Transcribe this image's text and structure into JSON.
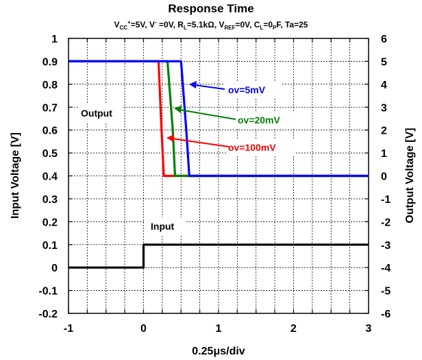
{
  "chart_data": {
    "type": "line",
    "title": "Response Time",
    "subtitle": {
      "vcc": "V",
      "vcc_sub": "CC",
      "vcc_sup": "+",
      "vcc_rest": "=5V, V",
      "vminus_sup": "-",
      "vminus_rest": " =0V, R",
      "rl_sub": "L",
      "rl_rest": "=5.1kΩ, V",
      "vref_sub": "REF",
      "vref_rest": "=0V, C",
      "cl_sub": "L",
      "cl_rest": "=0",
      "p_sub": "P",
      "p_rest": "F, Ta=25"
    },
    "xlabel": "0.25μs/div",
    "ylabel_left": "Input Voltage [V]",
    "ylabel_right": "Output Voltage [V]",
    "xlim": [
      -1,
      3
    ],
    "ylim_left": [
      -0.2,
      1.0
    ],
    "ylim_right": [
      -6,
      6
    ],
    "x_ticks": [
      "-1",
      "0",
      "1",
      "2",
      "3"
    ],
    "y_left_ticks": [
      "1",
      "0.9",
      "0.8",
      "0.7",
      "0.6",
      "0.5",
      "0.4",
      "0.3",
      "0.2",
      "0.1",
      "0",
      "-0.1",
      "-0.2"
    ],
    "y_right_ticks": [
      "6",
      "5",
      "4",
      "3",
      "2",
      "1",
      "0",
      "-1",
      "-2",
      "-3",
      "-4",
      "-5",
      "-6"
    ],
    "grid": true,
    "series": [
      {
        "name": "Input",
        "color": "#000000",
        "axis": "left",
        "x": [
          -1,
          0,
          0,
          3
        ],
        "y": [
          0,
          0,
          0.1,
          0.1
        ]
      },
      {
        "name": "ov=100mV",
        "color": "#ff0000",
        "axis": "right",
        "x": [
          -1,
          0.2,
          0.24,
          0.27,
          3
        ],
        "y": [
          5,
          5,
          2,
          0,
          0
        ]
      },
      {
        "name": "ov=20mV",
        "color": "#008000",
        "axis": "right",
        "x": [
          -1,
          0.32,
          0.39,
          0.42,
          3
        ],
        "y": [
          5,
          5,
          2,
          0,
          0
        ]
      },
      {
        "name": "ov=5mV",
        "color": "#0000ff",
        "axis": "right",
        "x": [
          -1,
          0.5,
          0.57,
          0.61,
          3
        ],
        "y": [
          5,
          5,
          2,
          0,
          0
        ]
      }
    ],
    "annotations": [
      {
        "text": "Output"
      },
      {
        "text": "Input"
      },
      {
        "text": "ov=5mV",
        "color": "#0000ff"
      },
      {
        "text": "ov=20mV",
        "color": "#008000"
      },
      {
        "text": "ov=100mV",
        "color": "#ff0000"
      }
    ]
  }
}
